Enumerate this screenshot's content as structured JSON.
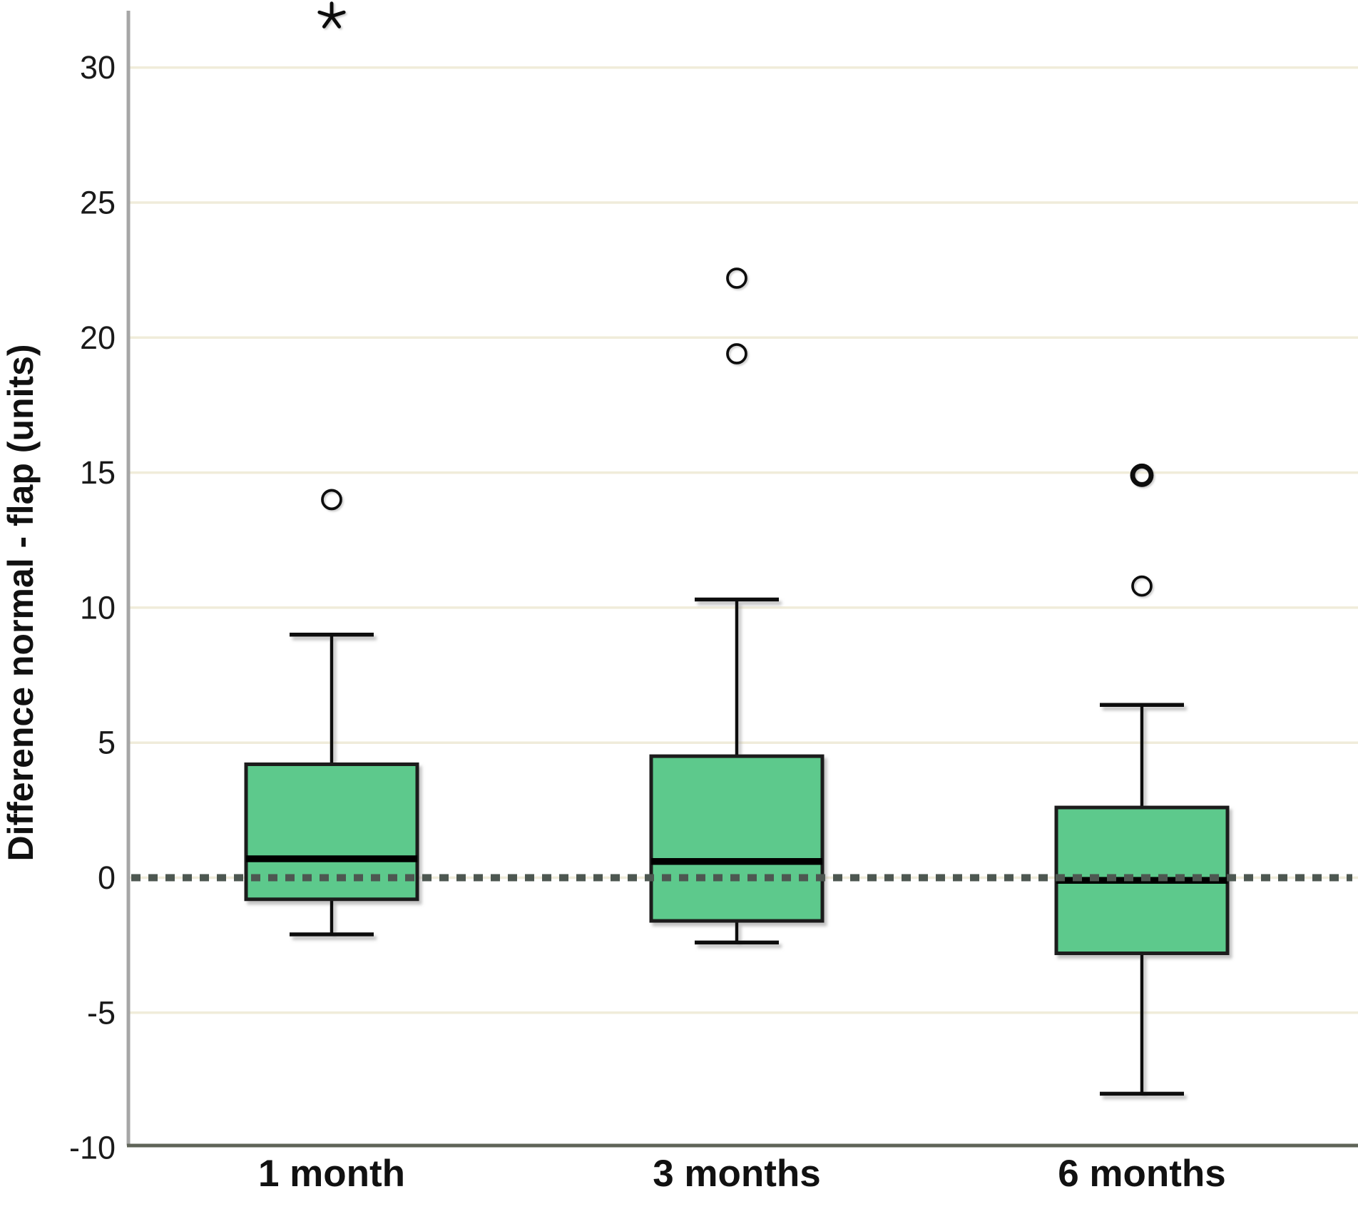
{
  "chart_data": {
    "type": "boxplot",
    "title": "",
    "xlabel": "",
    "ylabel": "Difference normal - flap (units)",
    "categories": [
      "1 month",
      "3 months",
      "6 months"
    ],
    "y_ticks": [
      30,
      25,
      20,
      15,
      10,
      5,
      0,
      -5,
      -10
    ],
    "ylim": [
      -10,
      32.1
    ],
    "grid": true,
    "reference_line": 0,
    "legend": "none",
    "series": [
      {
        "category": "1 month",
        "whisker_low": -2.1,
        "q1": -0.8,
        "median": 0.7,
        "q3": 4.2,
        "whisker_high": 9.0,
        "outliers": [
          14.0
        ],
        "bold_outliers": [],
        "extreme_outliers": [
          31.9
        ]
      },
      {
        "category": "3 months",
        "whisker_low": -2.4,
        "q1": -1.6,
        "median": 0.6,
        "q3": 4.5,
        "whisker_high": 10.3,
        "outliers": [
          19.4,
          22.2
        ],
        "bold_outliers": [],
        "extreme_outliers": []
      },
      {
        "category": "6 months",
        "whisker_low": -8.0,
        "q1": -2.8,
        "median": -0.1,
        "q3": 2.6,
        "whisker_high": 6.4,
        "outliers": [
          10.8,
          14.9
        ],
        "bold_outliers": [
          14.9
        ],
        "extreme_outliers": []
      }
    ],
    "colors": {
      "box_fill": "#5dc98c",
      "box_border": "#1c1c1c",
      "whisker": "#111111",
      "median": "#000000",
      "gridline": "#f0ecda",
      "reference_line": "#4d5751",
      "axis_y": "#a6a6a6",
      "axis_x": "#5f6458",
      "text": "#111111",
      "background": "#ffffff"
    }
  }
}
